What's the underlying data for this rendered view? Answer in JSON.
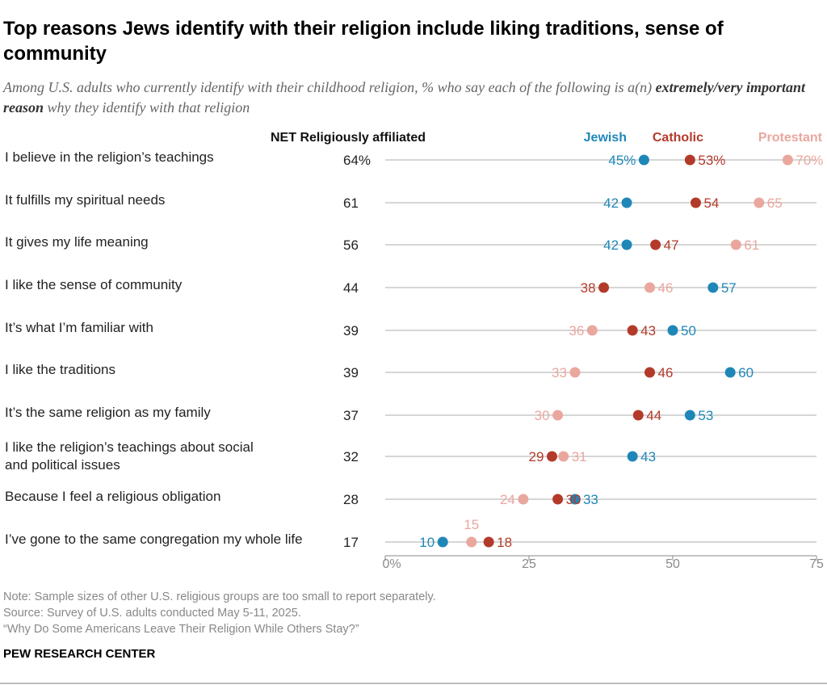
{
  "title": "Top reasons Jews identify with their religion include liking traditions, sense of community",
  "subtitle_part1": "Among U.S. adults who currently identify with their childhood religion, % who say each of the following is a(n) ",
  "subtitle_bold": "extremely/very important reason",
  "subtitle_part2": " why they identify with that religion",
  "net_header": "NET Religiously affiliated",
  "colors": {
    "Jewish": "#1f87b8",
    "Catholic": "#b33a2a",
    "Protestant": "#eaa79e",
    "gridline": "#c8c8c8",
    "axis": "#8a8a8a"
  },
  "chart_data": {
    "type": "scatter",
    "subtype": "dot-plot",
    "xlim": [
      0,
      75
    ],
    "x_ticks": [
      "0%",
      "25",
      "50",
      "75"
    ],
    "x_tick_values": [
      0,
      25,
      50,
      75
    ],
    "categories": [
      "I believe in the religion’s teachings",
      "It fulfills my spiritual needs",
      "It gives my life meaning",
      "I like the sense of community",
      "It’s what I’m familiar with",
      "I like the traditions",
      "It’s the same religion as my family",
      "I like the religion’s teachings about social and political issues",
      "Because I feel a religious obligation",
      "I’ve gone to the same congregation my whole life"
    ],
    "net_religiously_affiliated": [
      "64%",
      "61",
      "56",
      "44",
      "39",
      "39",
      "37",
      "32",
      "28",
      "17"
    ],
    "series": [
      {
        "name": "Jewish",
        "values": [
          45,
          42,
          42,
          57,
          50,
          60,
          53,
          43,
          33,
          10
        ]
      },
      {
        "name": "Catholic",
        "values": [
          53,
          54,
          47,
          38,
          43,
          46,
          44,
          29,
          30,
          18
        ]
      },
      {
        "name": "Protestant",
        "values": [
          70,
          65,
          61,
          46,
          36,
          33,
          30,
          31,
          24,
          15
        ]
      }
    ],
    "value_labels": {
      "Jewish": [
        "45%",
        "42",
        "42",
        "57",
        "50",
        "60",
        "53",
        "43",
        "33",
        "10"
      ],
      "Catholic": [
        "53%",
        "54",
        "47",
        "38",
        "43",
        "46",
        "44",
        "29",
        "30",
        "18"
      ],
      "Protestant": [
        "70%",
        "65",
        "61",
        "46",
        "36",
        "33",
        "30",
        "31",
        "24",
        "15"
      ]
    },
    "legend": [
      "Jewish",
      "Catholic",
      "Protestant"
    ],
    "legend_position": "top-right"
  },
  "notes": [
    "Note: Sample sizes of other U.S. religious groups are too small to report separately.",
    "Source: Survey of U.S. adults conducted May 5-11, 2025.",
    "“Why Do Some Americans Leave Their Religion While Others Stay?”"
  ],
  "brand": "PEW RESEARCH CENTER"
}
